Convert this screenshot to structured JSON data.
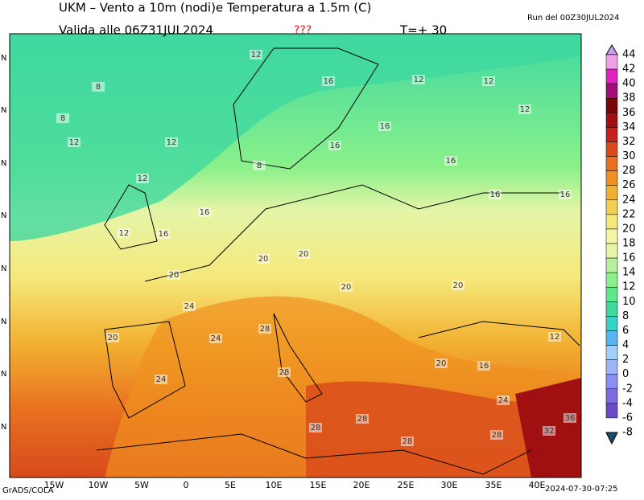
{
  "header": {
    "title": "UKM – Vento a 10m (nodi)e Temperatura a 1.5m (C)",
    "valid": "Valida alle 06Z31JUL2024",
    "flag": "???",
    "step": "T=+ 30",
    "run": "Run del 00Z30JUL2024"
  },
  "colorbar": {
    "levels": [
      44,
      42,
      40,
      38,
      36,
      34,
      32,
      30,
      28,
      26,
      24,
      22,
      20,
      18,
      16,
      14,
      12,
      10,
      8,
      6,
      4,
      2,
      0,
      -2,
      -4,
      -6,
      -8
    ],
    "colors": [
      "#c8a0f0",
      "#f0a0e8",
      "#e020c0",
      "#a0107a",
      "#780808",
      "#a01010",
      "#c82020",
      "#d84a1c",
      "#e87020",
      "#f09020",
      "#f2b030",
      "#f5d050",
      "#f5e87a",
      "#f5f5a8",
      "#e6f5a8",
      "#b8f0a0",
      "#8af08a",
      "#5de88a",
      "#40d8a0",
      "#37d2c8",
      "#5ab4f0",
      "#a0d0f8",
      "#9fb6f5",
      "#8a8ef0",
      "#7c6be0",
      "#6a4bc4",
      "#1e4a6a"
    ]
  },
  "map": {
    "lon_labels": [
      "15W",
      "10W",
      "5W",
      "0",
      "5E",
      "10E",
      "15E",
      "20E",
      "25E",
      "30E",
      "35E",
      "40E"
    ],
    "lat_label": "N",
    "contour_labels": [
      12,
      8,
      8,
      12,
      12,
      12,
      16,
      12,
      12,
      12,
      12,
      16,
      16,
      8,
      16,
      16,
      16,
      16,
      20,
      20,
      20,
      24,
      20,
      20,
      28,
      24,
      28,
      28,
      28,
      28,
      28,
      32,
      36,
      20,
      24,
      24,
      16,
      20,
      12,
      16
    ]
  },
  "footer": {
    "left": "GrADS/COLA",
    "right": "2024-07-30-07:25"
  }
}
